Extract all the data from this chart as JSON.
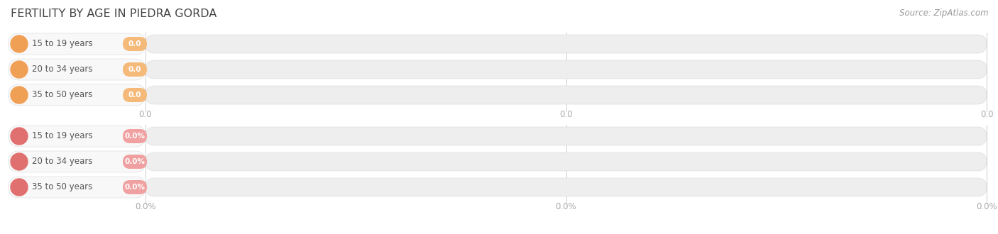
{
  "title": "FERTILITY BY AGE IN PIEDRA GORDA",
  "source": "Source: ZipAtlas.com",
  "top_group": {
    "labels": [
      "15 to 19 years",
      "20 to 34 years",
      "35 to 50 years"
    ],
    "value_labels": [
      "0.0",
      "0.0",
      "0.0"
    ],
    "bar_bg_color": "#eeeeee",
    "badge_color": "#f5b97a",
    "circle_color": "#f0a055",
    "label_color": "#555555"
  },
  "bottom_group": {
    "labels": [
      "15 to 19 years",
      "20 to 34 years",
      "35 to 50 years"
    ],
    "value_labels": [
      "0.0%",
      "0.0%",
      "0.0%"
    ],
    "bar_bg_color": "#eeeeee",
    "badge_color": "#f0a0a0",
    "circle_color": "#e07070",
    "label_color": "#555555"
  },
  "bg_color": "#ffffff",
  "title_color": "#444444",
  "source_color": "#999999",
  "tick_color": "#aaaaaa",
  "grid_color": "#cccccc",
  "title_fontsize": 11.5,
  "source_fontsize": 8.5,
  "label_fontsize": 8.5,
  "badge_fontsize": 7.5,
  "tick_fontsize": 8.5,
  "top_tick_labels": [
    "0.0",
    "0.0",
    "0.0"
  ],
  "bot_tick_labels": [
    "0.0%",
    "0.0%",
    "0.0%"
  ]
}
